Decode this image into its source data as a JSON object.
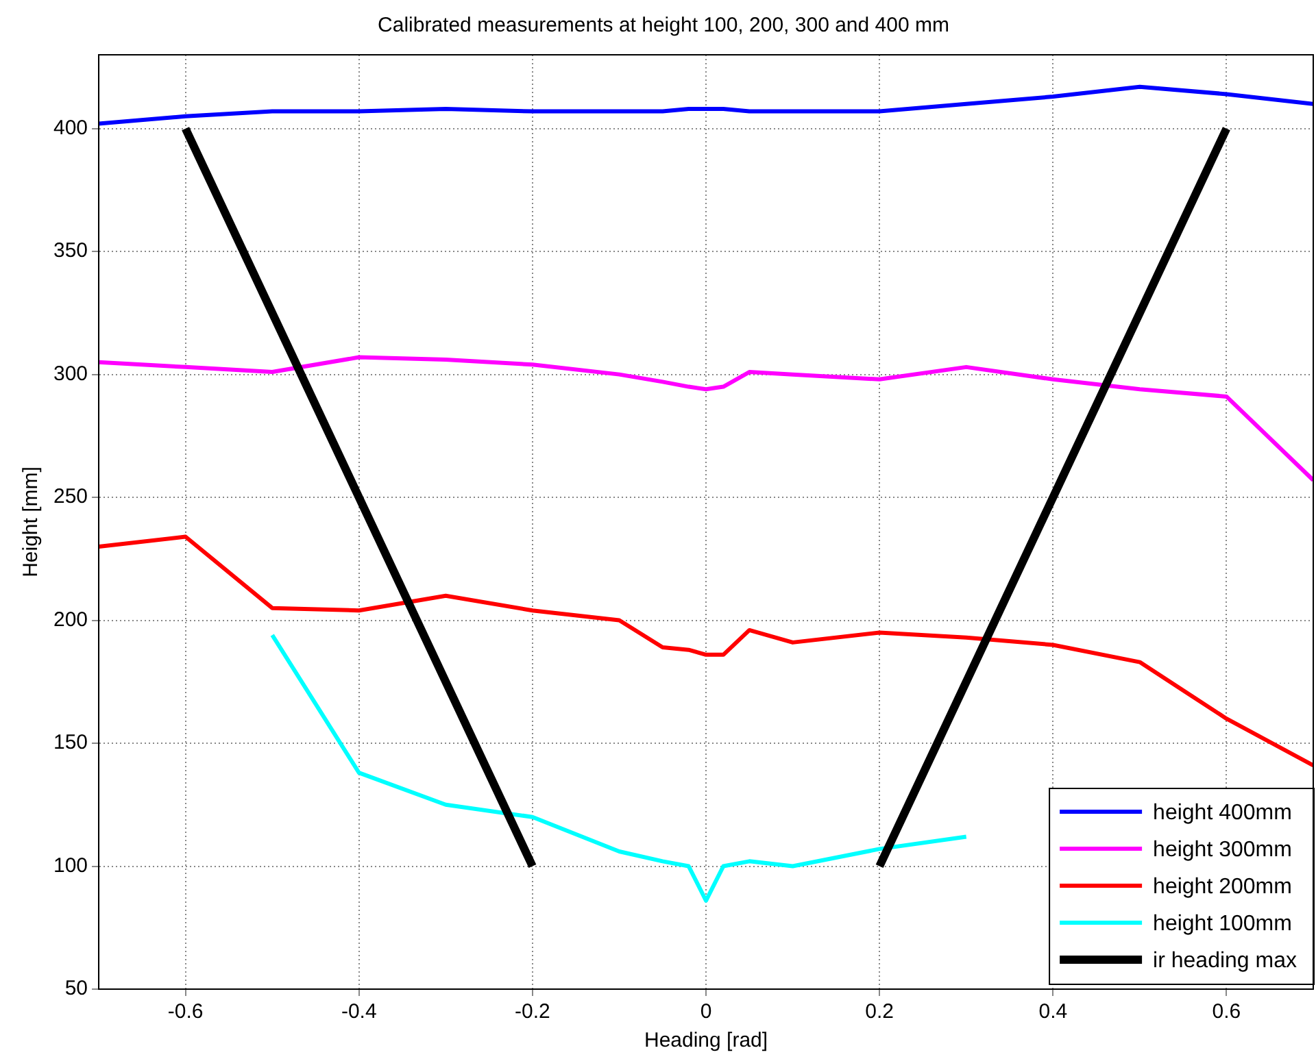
{
  "chart_data": {
    "type": "line",
    "title": "Calibrated measurements at height 100, 200, 300 and 400 mm",
    "xlabel": "Heading [rad]",
    "ylabel": "Height [mm]",
    "x": [
      -0.7,
      -0.6,
      -0.5,
      -0.4,
      -0.3,
      -0.2,
      -0.1,
      -0.05,
      -0.02,
      0,
      0.02,
      0.05,
      0.1,
      0.2,
      0.3,
      0.4,
      0.5,
      0.6,
      0.7
    ],
    "series": [
      {
        "name": "height 400mm",
        "color": "#0000ff",
        "values": [
          402,
          405,
          407,
          407,
          408,
          407,
          407,
          407,
          408,
          408,
          408,
          407,
          407,
          407,
          410,
          413,
          417,
          414,
          410
        ]
      },
      {
        "name": "height 300mm",
        "color": "#ff00ff",
        "values": [
          305,
          303,
          301,
          307,
          306,
          304,
          300,
          297,
          295,
          294,
          295,
          301,
          300,
          298,
          303,
          298,
          294,
          291,
          257
        ]
      },
      {
        "name": "height 200mm",
        "color": "#ff0000",
        "values": [
          230,
          234,
          205,
          204,
          210,
          204,
          200,
          189,
          188,
          186,
          186,
          196,
          191,
          195,
          193,
          190,
          183,
          160,
          141
        ]
      },
      {
        "name": "height 100mm",
        "color": "#00ffff",
        "values": [
          null,
          null,
          194,
          138,
          125,
          120,
          106,
          102,
          100,
          86,
          100,
          102,
          100,
          107,
          112,
          null,
          null,
          null,
          null
        ]
      },
      {
        "name": "ir heading max",
        "color": "#000000",
        "x": [
          -0.6,
          -0.2,
          0,
          0.2,
          0.6
        ],
        "values": [
          400,
          100,
          null,
          100,
          400
        ]
      }
    ],
    "xlim": [
      -0.7,
      0.7
    ],
    "xticks": [
      -0.6,
      -0.4,
      -0.2,
      0,
      0.2,
      0.4,
      0.6
    ],
    "ylim": [
      50,
      430
    ],
    "yticks": [
      50,
      100,
      150,
      200,
      250,
      300,
      350,
      400
    ],
    "grid": true,
    "legend": "bottom right",
    "marker": "none",
    "line_style": "solid"
  }
}
